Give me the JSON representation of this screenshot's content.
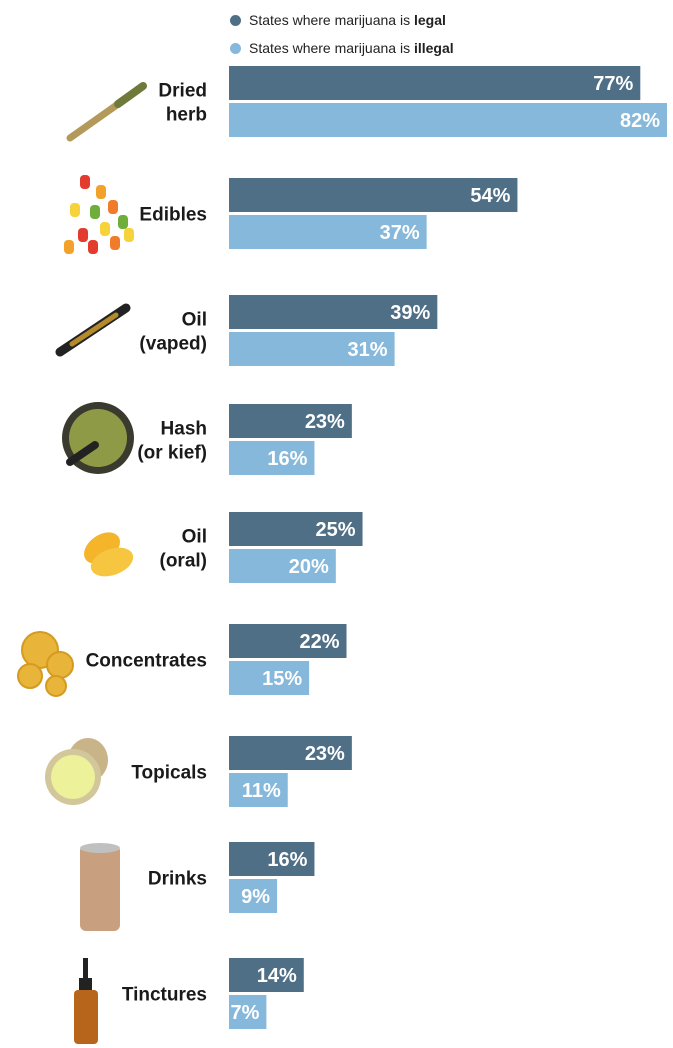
{
  "legend": {
    "legal": {
      "prefix": "States where marijuana is ",
      "bold": "legal"
    },
    "illegal": {
      "prefix": "States where marijuana is ",
      "bold": "illegal"
    }
  },
  "colors": {
    "legal": "#4f6f86",
    "illegal": "#86b8db"
  },
  "icons": [
    "joint-icon",
    "gummy-bears-icon",
    "vape-cartridge-icon",
    "hash-grinder-icon",
    "oil-capsule-icon",
    "concentrate-nugget-icon",
    "topical-jar-icon",
    "drink-can-icon",
    "tincture-bottle-icon"
  ],
  "chart_data": {
    "type": "bar",
    "orientation": "horizontal",
    "categories": [
      [
        "Dried",
        "herb"
      ],
      [
        "Edibles"
      ],
      [
        "Oil",
        "(vaped)"
      ],
      [
        "Hash",
        "(or kief)"
      ],
      [
        "Oil",
        "(oral)"
      ],
      [
        "Concentrates"
      ],
      [
        "Topicals"
      ],
      [
        "Drinks"
      ],
      [
        "Tinctures"
      ]
    ],
    "series": [
      {
        "name": "States where marijuana is legal",
        "values": [
          77,
          54,
          39,
          23,
          25,
          22,
          23,
          16,
          14
        ],
        "labels": [
          "77%",
          "54%",
          "39%",
          "23%",
          "25%",
          "22%",
          "23%",
          "16%",
          "14%"
        ]
      },
      {
        "name": "States where marijuana is illegal",
        "values": [
          82,
          37,
          31,
          16,
          20,
          15,
          11,
          9,
          7
        ],
        "labels": [
          "82%",
          "37%",
          "31%",
          "16%",
          "20%",
          "15%",
          "11%",
          "9%",
          "7%"
        ]
      }
    ],
    "xlim": [
      0,
      82
    ]
  }
}
